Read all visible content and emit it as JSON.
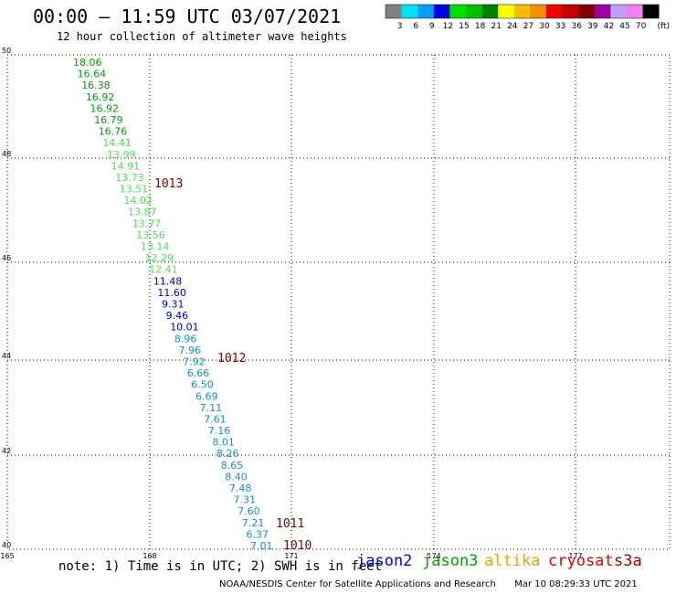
{
  "header": {
    "title": "00:00 – 11:59 UTC 03/07/2021",
    "subtitle": "12 hour collection of altimeter wave heights"
  },
  "colorbar": {
    "unit": "(ft)",
    "bins": [
      {
        "label": "3",
        "color": "#808080"
      },
      {
        "label": "6",
        "color": "#00e0f0"
      },
      {
        "label": "9",
        "color": "#00a0f0"
      },
      {
        "label": "12",
        "color": "#0000e0"
      },
      {
        "label": "15",
        "color": "#00e000"
      },
      {
        "label": "18",
        "color": "#00c000"
      },
      {
        "label": "21",
        "color": "#008000"
      },
      {
        "label": "24",
        "color": "#ffff00"
      },
      {
        "label": "27",
        "color": "#f0c000"
      },
      {
        "label": "30",
        "color": "#f09000"
      },
      {
        "label": "33",
        "color": "#f00000"
      },
      {
        "label": "36",
        "color": "#c00000"
      },
      {
        "label": "39",
        "color": "#800000"
      },
      {
        "label": "42",
        "color": "#a000a0"
      },
      {
        "label": "45",
        "color": "#c0a0f0"
      },
      {
        "label": "70",
        "color": "#f080f0"
      },
      {
        "label": "",
        "color": "#000000"
      }
    ]
  },
  "axes": {
    "lon_ticks": [
      "165",
      "168",
      "171",
      "174",
      "177"
    ],
    "lat_ticks": [
      "50",
      "48",
      "46",
      "44",
      "42",
      "40"
    ]
  },
  "wave_heights": [
    {
      "value": "18.06",
      "color": "#00a000"
    },
    {
      "value": "16.64",
      "color": "#00a000"
    },
    {
      "value": "16.38",
      "color": "#00a000"
    },
    {
      "value": "16.92",
      "color": "#00a000"
    },
    {
      "value": "16.92",
      "color": "#00a000"
    },
    {
      "value": "16.79",
      "color": "#00a000"
    },
    {
      "value": "16.76",
      "color": "#00a000"
    },
    {
      "value": "14.41",
      "color": "#50e050"
    },
    {
      "value": "13.99",
      "color": "#50e050"
    },
    {
      "value": "14.91",
      "color": "#50e050"
    },
    {
      "value": "13.73",
      "color": "#50e050"
    },
    {
      "value": "13.51",
      "color": "#50e050"
    },
    {
      "value": "14.02",
      "color": "#50e050"
    },
    {
      "value": "13.87",
      "color": "#50e050"
    },
    {
      "value": "13.77",
      "color": "#50e050"
    },
    {
      "value": "13.56",
      "color": "#50e050"
    },
    {
      "value": "13.14",
      "color": "#50e050"
    },
    {
      "value": "12.29",
      "color": "#50e050"
    },
    {
      "value": "12.41",
      "color": "#50e050"
    },
    {
      "value": "11.48",
      "color": "#0000c0"
    },
    {
      "value": "11.60",
      "color": "#0000c0"
    },
    {
      "value": "9.31",
      "color": "#0000c0"
    },
    {
      "value": "9.46",
      "color": "#0000c0"
    },
    {
      "value": "10.01",
      "color": "#0000c0"
    },
    {
      "value": "8.96",
      "color": "#1090d0"
    },
    {
      "value": "7.96",
      "color": "#1090d0"
    },
    {
      "value": "7.92",
      "color": "#1090d0"
    },
    {
      "value": "6.66",
      "color": "#1090d0"
    },
    {
      "value": "6.50",
      "color": "#1090d0"
    },
    {
      "value": "6.69",
      "color": "#1090d0"
    },
    {
      "value": "7.11",
      "color": "#1090d0"
    },
    {
      "value": "7.61",
      "color": "#1090d0"
    },
    {
      "value": "7.16",
      "color": "#1090d0"
    },
    {
      "value": "8.01",
      "color": "#1090d0"
    },
    {
      "value": "8.26",
      "color": "#1090d0"
    },
    {
      "value": "8.65",
      "color": "#1090d0"
    },
    {
      "value": "8.40",
      "color": "#1090d0"
    },
    {
      "value": "7.48",
      "color": "#1090d0"
    },
    {
      "value": "7.31",
      "color": "#1090d0"
    },
    {
      "value": "7.60",
      "color": "#1090d0"
    },
    {
      "value": "7.21",
      "color": "#1090d0"
    },
    {
      "value": "6.37",
      "color": "#1090d0"
    },
    {
      "value": "7.01",
      "color": "#1090d0"
    }
  ],
  "pressure_labels": [
    {
      "value": "1013",
      "color": "#800000"
    },
    {
      "value": "1012",
      "color": "#800000"
    },
    {
      "value": "1011",
      "color": "#800000"
    },
    {
      "value": "1010",
      "color": "#800000"
    }
  ],
  "footer": {
    "note": "note: 1) Time is in UTC; 2) SWH is in feet",
    "satellites": [
      {
        "name": "jason2",
        "color": "#0000ff"
      },
      {
        "name": "jason3",
        "color": "#00a000"
      },
      {
        "name": "altika",
        "color": "#f0a000"
      },
      {
        "name": "cryosat",
        "color": "#e00000"
      },
      {
        "name": "s3a",
        "color": "#a00000"
      }
    ],
    "credit": "NOAA/NESDIS Center for Satellite Applications and Research",
    "timestamp": "Mar 10 08:29:33 UTC 2021"
  }
}
